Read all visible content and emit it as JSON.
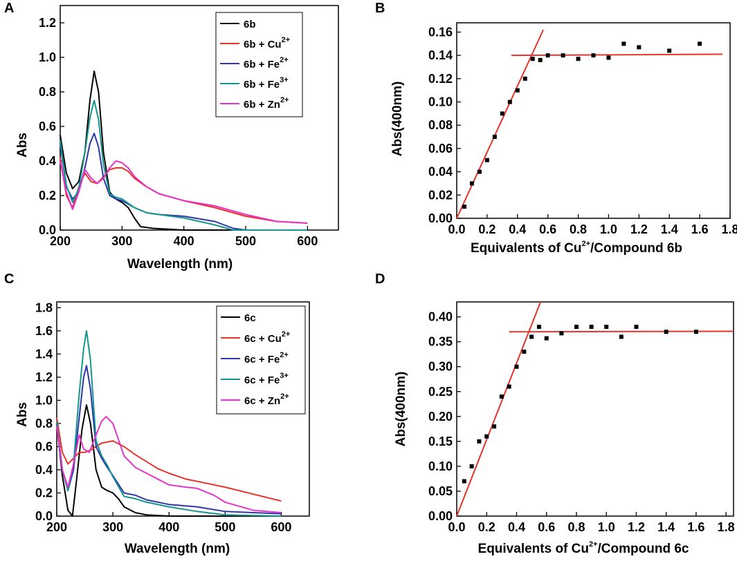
{
  "chart_data": [
    {
      "panel": "A",
      "type": "line",
      "title": "",
      "xlabel": "Wavelength (nm)",
      "ylabel": "Abs",
      "xlim": [
        200,
        650
      ],
      "ylim": [
        0,
        1.3
      ],
      "xticks": [
        200,
        300,
        400,
        500,
        600
      ],
      "yticks": [
        0.0,
        0.2,
        0.4,
        0.6,
        0.8,
        1.0,
        1.2
      ],
      "legend_position": "top-right",
      "series": [
        {
          "name": "6b",
          "sup": "",
          "color": "#000000",
          "points": [
            [
              200,
              0.55
            ],
            [
              210,
              0.33
            ],
            [
              220,
              0.24
            ],
            [
              230,
              0.28
            ],
            [
              240,
              0.45
            ],
            [
              248,
              0.75
            ],
            [
              255,
              0.92
            ],
            [
              262,
              0.8
            ],
            [
              270,
              0.45
            ],
            [
              280,
              0.22
            ],
            [
              290,
              0.18
            ],
            [
              300,
              0.16
            ],
            [
              310,
              0.13
            ],
            [
              320,
              0.07
            ],
            [
              330,
              0.02
            ],
            [
              350,
              0.01
            ],
            [
              400,
              0.0
            ],
            [
              600,
              0.0
            ]
          ]
        },
        {
          "name": "6b + Cu",
          "sup": "2+",
          "color": "#e8322a",
          "points": [
            [
              200,
              0.42
            ],
            [
              210,
              0.2
            ],
            [
              220,
              0.13
            ],
            [
              230,
              0.25
            ],
            [
              240,
              0.33
            ],
            [
              250,
              0.28
            ],
            [
              260,
              0.27
            ],
            [
              270,
              0.31
            ],
            [
              280,
              0.35
            ],
            [
              290,
              0.36
            ],
            [
              300,
              0.36
            ],
            [
              310,
              0.34
            ],
            [
              320,
              0.3
            ],
            [
              340,
              0.25
            ],
            [
              360,
              0.21
            ],
            [
              400,
              0.17
            ],
            [
              450,
              0.13
            ],
            [
              500,
              0.08
            ],
            [
              550,
              0.05
            ],
            [
              600,
              0.04
            ]
          ]
        },
        {
          "name": "6b + Fe",
          "sup": "2+",
          "color": "#2c36a8",
          "points": [
            [
              200,
              0.5
            ],
            [
              210,
              0.25
            ],
            [
              220,
              0.18
            ],
            [
              230,
              0.22
            ],
            [
              240,
              0.36
            ],
            [
              248,
              0.5
            ],
            [
              255,
              0.56
            ],
            [
              262,
              0.48
            ],
            [
              270,
              0.3
            ],
            [
              280,
              0.2
            ],
            [
              290,
              0.18
            ],
            [
              300,
              0.17
            ],
            [
              320,
              0.13
            ],
            [
              340,
              0.1
            ],
            [
              360,
              0.09
            ],
            [
              400,
              0.08
            ],
            [
              450,
              0.05
            ],
            [
              480,
              0.01
            ],
            [
              500,
              0.0
            ],
            [
              600,
              0.0
            ]
          ]
        },
        {
          "name": "6b + Fe",
          "sup": "3+",
          "color": "#13958e",
          "points": [
            [
              200,
              0.52
            ],
            [
              210,
              0.26
            ],
            [
              220,
              0.16
            ],
            [
              230,
              0.24
            ],
            [
              240,
              0.45
            ],
            [
              248,
              0.65
            ],
            [
              255,
              0.75
            ],
            [
              262,
              0.64
            ],
            [
              270,
              0.38
            ],
            [
              280,
              0.21
            ],
            [
              290,
              0.19
            ],
            [
              300,
              0.18
            ],
            [
              320,
              0.13
            ],
            [
              340,
              0.1
            ],
            [
              360,
              0.09
            ],
            [
              400,
              0.07
            ],
            [
              450,
              0.03
            ],
            [
              480,
              0.0
            ],
            [
              600,
              0.0
            ]
          ]
        },
        {
          "name": "6b + Zn",
          "sup": "2+",
          "color": "#e632c8",
          "points": [
            [
              200,
              0.4
            ],
            [
              210,
              0.22
            ],
            [
              220,
              0.12
            ],
            [
              230,
              0.22
            ],
            [
              240,
              0.35
            ],
            [
              250,
              0.3
            ],
            [
              260,
              0.27
            ],
            [
              270,
              0.3
            ],
            [
              280,
              0.36
            ],
            [
              290,
              0.4
            ],
            [
              300,
              0.39
            ],
            [
              310,
              0.36
            ],
            [
              320,
              0.31
            ],
            [
              340,
              0.25
            ],
            [
              360,
              0.21
            ],
            [
              400,
              0.17
            ],
            [
              450,
              0.14
            ],
            [
              500,
              0.09
            ],
            [
              550,
              0.05
            ],
            [
              600,
              0.04
            ]
          ]
        }
      ]
    },
    {
      "panel": "B",
      "type": "scatter",
      "title": "",
      "xlabel": "Equivalents of Cu",
      "xlabel_sup": "2+",
      "xlabel_suffix": "/Compound 6b",
      "ylabel": "Abs(400nm)",
      "xlim": [
        0,
        1.8
      ],
      "ylim": [
        0,
        0.168
      ],
      "xticks": [
        0.0,
        0.2,
        0.4,
        0.6,
        0.8,
        1.0,
        1.2,
        1.4,
        1.6,
        1.8
      ],
      "yticks": [
        0.0,
        0.02,
        0.04,
        0.06,
        0.08,
        0.1,
        0.12,
        0.14,
        0.16
      ],
      "points": [
        [
          0.05,
          0.01
        ],
        [
          0.1,
          0.03
        ],
        [
          0.15,
          0.04
        ],
        [
          0.2,
          0.05
        ],
        [
          0.25,
          0.07
        ],
        [
          0.3,
          0.09
        ],
        [
          0.35,
          0.1
        ],
        [
          0.4,
          0.11
        ],
        [
          0.45,
          0.12
        ],
        [
          0.5,
          0.137
        ],
        [
          0.55,
          0.136
        ],
        [
          0.6,
          0.14
        ],
        [
          0.7,
          0.14
        ],
        [
          0.8,
          0.137
        ],
        [
          0.9,
          0.14
        ],
        [
          1.0,
          0.138
        ],
        [
          1.1,
          0.15
        ],
        [
          1.2,
          0.147
        ],
        [
          1.4,
          0.144
        ],
        [
          1.6,
          0.15
        ]
      ],
      "fit_lines": [
        {
          "color": "#e8322a",
          "from": [
            0.0,
            0.0
          ],
          "to": [
            0.57,
            0.162
          ]
        },
        {
          "color": "#e8322a",
          "from": [
            0.36,
            0.14
          ],
          "to": [
            1.75,
            0.141
          ]
        }
      ]
    },
    {
      "panel": "C",
      "type": "line",
      "title": "",
      "xlabel": "Wavelength (nm)",
      "ylabel": "Abs",
      "xlim": [
        200,
        650
      ],
      "ylim": [
        0,
        1.85
      ],
      "xticks": [
        200,
        300,
        400,
        500,
        600
      ],
      "yticks": [
        0.0,
        0.2,
        0.4,
        0.6,
        0.8,
        1.0,
        1.2,
        1.4,
        1.6,
        1.8
      ],
      "legend_position": "top-right",
      "series": [
        {
          "name": "6c",
          "sup": "",
          "color": "#000000",
          "points": [
            [
              200,
              0.8
            ],
            [
              210,
              0.35
            ],
            [
              220,
              0.05
            ],
            [
              228,
              0.0
            ],
            [
              235,
              0.3
            ],
            [
              245,
              0.75
            ],
            [
              253,
              0.96
            ],
            [
              260,
              0.8
            ],
            [
              270,
              0.4
            ],
            [
              280,
              0.25
            ],
            [
              290,
              0.22
            ],
            [
              300,
              0.2
            ],
            [
              310,
              0.15
            ],
            [
              320,
              0.08
            ],
            [
              340,
              0.03
            ],
            [
              360,
              0.01
            ],
            [
              400,
              0.0
            ],
            [
              600,
              0.0
            ]
          ]
        },
        {
          "name": "6c + Cu",
          "sup": "2+",
          "color": "#e8322a",
          "points": [
            [
              200,
              0.85
            ],
            [
              210,
              0.55
            ],
            [
              220,
              0.45
            ],
            [
              230,
              0.5
            ],
            [
              240,
              0.55
            ],
            [
              250,
              0.55
            ],
            [
              260,
              0.57
            ],
            [
              270,
              0.6
            ],
            [
              280,
              0.63
            ],
            [
              290,
              0.64
            ],
            [
              300,
              0.65
            ],
            [
              320,
              0.6
            ],
            [
              340,
              0.53
            ],
            [
              360,
              0.47
            ],
            [
              380,
              0.41
            ],
            [
              400,
              0.37
            ],
            [
              430,
              0.32
            ],
            [
              450,
              0.3
            ],
            [
              500,
              0.25
            ],
            [
              550,
              0.19
            ],
            [
              600,
              0.13
            ]
          ]
        },
        {
          "name": "6c + Fe",
          "sup": "2+",
          "color": "#2c36a8",
          "points": [
            [
              200,
              0.8
            ],
            [
              210,
              0.4
            ],
            [
              220,
              0.22
            ],
            [
              230,
              0.4
            ],
            [
              240,
              0.85
            ],
            [
              248,
              1.2
            ],
            [
              253,
              1.3
            ],
            [
              260,
              1.1
            ],
            [
              270,
              0.6
            ],
            [
              280,
              0.5
            ],
            [
              290,
              0.42
            ],
            [
              300,
              0.35
            ],
            [
              320,
              0.2
            ],
            [
              340,
              0.18
            ],
            [
              360,
              0.14
            ],
            [
              400,
              0.1
            ],
            [
              450,
              0.08
            ],
            [
              500,
              0.04
            ],
            [
              550,
              0.03
            ],
            [
              600,
              0.02
            ]
          ]
        },
        {
          "name": "6c + Fe",
          "sup": "3+",
          "color": "#13958e",
          "points": [
            [
              200,
              0.82
            ],
            [
              210,
              0.4
            ],
            [
              220,
              0.22
            ],
            [
              230,
              0.45
            ],
            [
              240,
              1.05
            ],
            [
              248,
              1.45
            ],
            [
              253,
              1.6
            ],
            [
              260,
              1.35
            ],
            [
              270,
              0.65
            ],
            [
              280,
              0.52
            ],
            [
              290,
              0.44
            ],
            [
              300,
              0.34
            ],
            [
              320,
              0.17
            ],
            [
              340,
              0.15
            ],
            [
              360,
              0.12
            ],
            [
              400,
              0.08
            ],
            [
              450,
              0.04
            ],
            [
              500,
              0.01
            ],
            [
              600,
              0.0
            ]
          ]
        },
        {
          "name": "6c + Zn",
          "sup": "2+",
          "color": "#e632c8",
          "points": [
            [
              200,
              0.78
            ],
            [
              210,
              0.4
            ],
            [
              220,
              0.25
            ],
            [
              230,
              0.45
            ],
            [
              240,
              0.7
            ],
            [
              248,
              0.58
            ],
            [
              258,
              0.55
            ],
            [
              270,
              0.7
            ],
            [
              280,
              0.82
            ],
            [
              288,
              0.86
            ],
            [
              300,
              0.8
            ],
            [
              310,
              0.66
            ],
            [
              320,
              0.52
            ],
            [
              340,
              0.42
            ],
            [
              360,
              0.37
            ],
            [
              400,
              0.27
            ],
            [
              430,
              0.25
            ],
            [
              450,
              0.24
            ],
            [
              480,
              0.18
            ],
            [
              500,
              0.12
            ],
            [
              550,
              0.05
            ],
            [
              600,
              0.03
            ]
          ]
        }
      ]
    },
    {
      "panel": "D",
      "type": "scatter",
      "title": "",
      "xlabel": "Equivalents of Cu",
      "xlabel_sup": "2+",
      "xlabel_suffix": "/Compound 6c",
      "ylabel": "Abs(400nm)",
      "xlim": [
        0,
        1.85
      ],
      "ylim": [
        0,
        0.43
      ],
      "xticks": [
        0.0,
        0.2,
        0.4,
        0.6,
        0.8,
        1.0,
        1.2,
        1.4,
        1.6,
        1.8
      ],
      "yticks": [
        0.0,
        0.05,
        0.1,
        0.15,
        0.2,
        0.25,
        0.3,
        0.35,
        0.4
      ],
      "points": [
        [
          0.05,
          0.07
        ],
        [
          0.1,
          0.1
        ],
        [
          0.15,
          0.15
        ],
        [
          0.2,
          0.16
        ],
        [
          0.25,
          0.18
        ],
        [
          0.3,
          0.24
        ],
        [
          0.35,
          0.26
        ],
        [
          0.4,
          0.3
        ],
        [
          0.45,
          0.33
        ],
        [
          0.5,
          0.36
        ],
        [
          0.55,
          0.38
        ],
        [
          0.6,
          0.357
        ],
        [
          0.7,
          0.367
        ],
        [
          0.8,
          0.38
        ],
        [
          0.9,
          0.38
        ],
        [
          1.0,
          0.38
        ],
        [
          1.1,
          0.36
        ],
        [
          1.2,
          0.38
        ],
        [
          1.4,
          0.37
        ],
        [
          1.6,
          0.37
        ]
      ],
      "fit_lines": [
        {
          "color": "#e8322a",
          "from": [
            0.0,
            0.0
          ],
          "to": [
            0.56,
            0.43
          ]
        },
        {
          "color": "#e8322a",
          "from": [
            0.35,
            0.37
          ],
          "to": [
            1.85,
            0.371
          ]
        }
      ]
    }
  ]
}
